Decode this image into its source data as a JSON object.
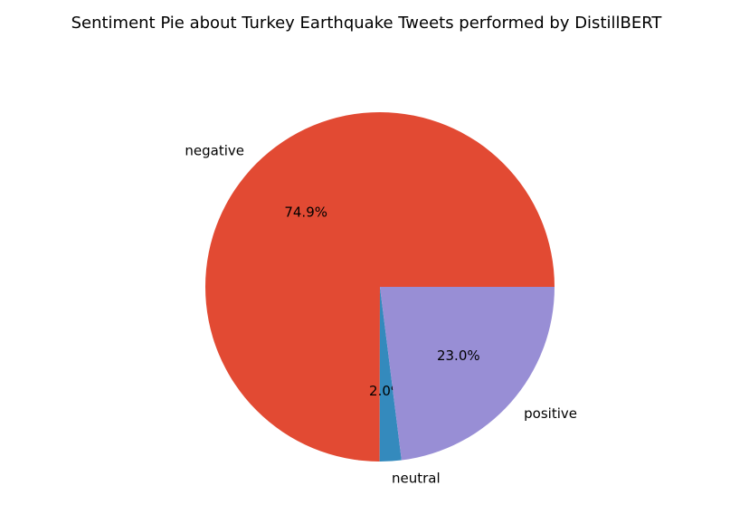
{
  "chart_data": {
    "type": "pie",
    "title": "Sentiment Pie about Turkey Earthquake Tweets performed by DistillBERT",
    "categories": [
      "negative",
      "neutral",
      "positive"
    ],
    "values": [
      74.9,
      2.0,
      23.0
    ],
    "value_labels": [
      "74.9%",
      "2.0%",
      "23.0%"
    ],
    "colors": [
      "#E24A33",
      "#348ABD",
      "#988ED5"
    ]
  }
}
